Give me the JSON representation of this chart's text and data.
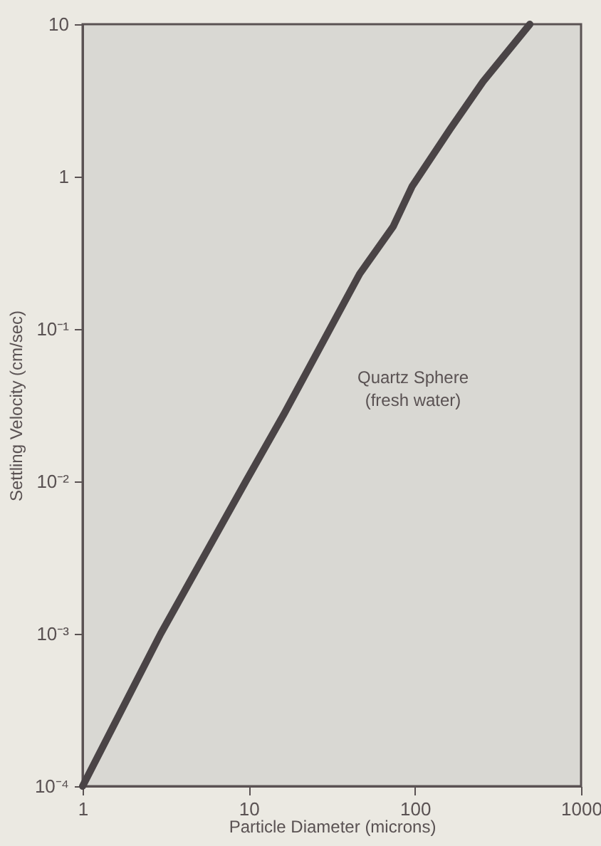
{
  "chart_data": {
    "type": "line",
    "xlabel": "Particle Diameter  (microns)",
    "ylabel": "Settling Velocity  (cm/sec)",
    "log": "xy",
    "grid": false,
    "marker": "none",
    "line_style": "solid",
    "xlim": [
      1,
      1000
    ],
    "ylim": [
      0.0001,
      10
    ],
    "xticks": [
      1,
      10,
      100,
      1000
    ],
    "yticks": [
      {
        "value": 0.0001,
        "label": "10⁻⁴"
      },
      {
        "value": 0.001,
        "label": "10⁻³"
      },
      {
        "value": 0.01,
        "label": "10⁻²"
      },
      {
        "value": 0.1,
        "label": "10⁻¹"
      },
      1,
      10
    ],
    "x": [
      1,
      2.95,
      9.6,
      16.4,
      46.5,
      74,
      96,
      163,
      257,
      492
    ],
    "series": [
      {
        "color": "#4a4446",
        "values": [
          0.0001,
          0.001,
          0.01,
          0.028,
          0.23,
          0.47,
          0.86,
          2.05,
          4.2,
          10
        ]
      }
    ],
    "annotations": [
      "Quartz Sphere\n(fresh water)"
    ]
  }
}
